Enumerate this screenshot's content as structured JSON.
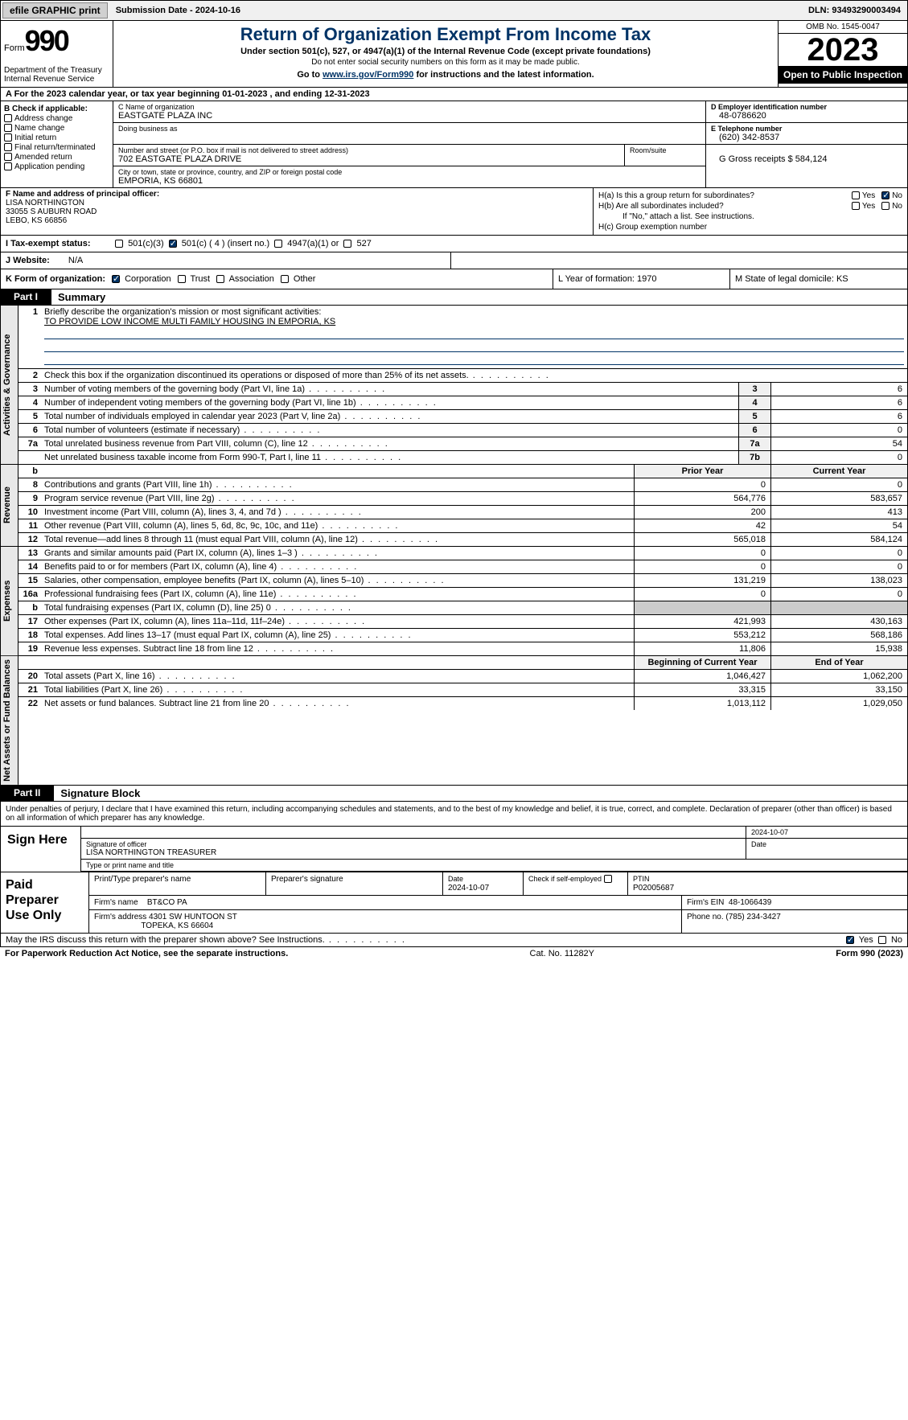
{
  "topbar": {
    "efile": "efile GRAPHIC print",
    "submission_label": "Submission Date - 2024-10-16",
    "dln_label": "DLN: 93493290003494"
  },
  "header": {
    "form_word": "Form",
    "form_number": "990",
    "dept": "Department of the Treasury\nInternal Revenue Service",
    "title": "Return of Organization Exempt From Income Tax",
    "subtitle": "Under section 501(c), 527, or 4947(a)(1) of the Internal Revenue Code (except private foundations)",
    "subnote": "Do not enter social security numbers on this form as it may be made public.",
    "goto_prefix": "Go to ",
    "goto_link": "www.irs.gov/Form990",
    "goto_suffix": " for instructions and the latest information.",
    "omb": "OMB No. 1545-0047",
    "year": "2023",
    "open_pub": "Open to Public Inspection"
  },
  "row_a": "A For the 2023 calendar year, or tax year beginning 01-01-2023    , and ending 12-31-2023",
  "section_b": {
    "label": "B Check if applicable:",
    "items": [
      "Address change",
      "Name change",
      "Initial return",
      "Final return/terminated",
      "Amended return",
      "Application pending"
    ]
  },
  "section_c": {
    "name_label": "C Name of organization",
    "name": "EASTGATE PLAZA INC",
    "dba_label": "Doing business as",
    "addr_label": "Number and street (or P.O. box if mail is not delivered to street address)",
    "addr": "702 EASTGATE PLAZA DRIVE",
    "room_label": "Room/suite",
    "city_label": "City or town, state or province, country, and ZIP or foreign postal code",
    "city": "EMPORIA, KS  66801"
  },
  "section_d": {
    "ein_label": "D Employer identification number",
    "ein": "48-0786620",
    "phone_label": "E Telephone number",
    "phone": "(620) 342-8537",
    "receipts_label": "G Gross receipts $ 584,124"
  },
  "section_f": {
    "label": "F  Name and address of principal officer:",
    "name": "LISA NORTHINGTON",
    "addr1": "33055 S AUBURN ROAD",
    "addr2": "LEBO, KS  66856"
  },
  "section_h": {
    "ha_label": "H(a)  Is this a group return for subordinates?",
    "hb_label": "H(b)  Are all subordinates included?",
    "hb_note": "If \"No,\" attach a list. See instructions.",
    "hc_label": "H(c)  Group exemption number",
    "yes": "Yes",
    "no": "No"
  },
  "row_i": {
    "label": "I  Tax-exempt status:",
    "opt1": "501(c)(3)",
    "opt2": "501(c) ( 4 ) (insert no.)",
    "opt3": "4947(a)(1) or",
    "opt4": "527"
  },
  "row_j": {
    "label": "J  Website:",
    "value": "N/A"
  },
  "row_k": {
    "label": "K Form of organization:",
    "corp": "Corporation",
    "trust": "Trust",
    "assoc": "Association",
    "other": "Other",
    "l_label": "L Year of formation: 1970",
    "m_label": "M State of legal domicile: KS"
  },
  "part1": {
    "num": "Part I",
    "title": "Summary"
  },
  "mission": {
    "q1_label": "Briefly describe the organization's mission or most significant activities:",
    "q1_text": "TO PROVIDE LOW INCOME MULTI FAMILY HOUSING IN EMPORIA, KS"
  },
  "governance_rows": [
    {
      "n": "2",
      "text": "Check this box      if the organization discontinued its operations or disposed of more than 25% of its net assets.",
      "box": "",
      "val": ""
    },
    {
      "n": "3",
      "text": "Number of voting members of the governing body (Part VI, line 1a)",
      "box": "3",
      "val": "6"
    },
    {
      "n": "4",
      "text": "Number of independent voting members of the governing body (Part VI, line 1b)",
      "box": "4",
      "val": "6"
    },
    {
      "n": "5",
      "text": "Total number of individuals employed in calendar year 2023 (Part V, line 2a)",
      "box": "5",
      "val": "6"
    },
    {
      "n": "6",
      "text": "Total number of volunteers (estimate if necessary)",
      "box": "6",
      "val": "0"
    },
    {
      "n": "7a",
      "text": "Total unrelated business revenue from Part VIII, column (C), line 12",
      "box": "7a",
      "val": "54"
    },
    {
      "n": "",
      "text": "Net unrelated business taxable income from Form 990-T, Part I, line 11",
      "box": "7b",
      "val": "0"
    }
  ],
  "rev_header": {
    "b": "b",
    "prior": "Prior Year",
    "current": "Current Year"
  },
  "revenue_rows": [
    {
      "n": "8",
      "text": "Contributions and grants (Part VIII, line 1h)",
      "prior": "0",
      "cur": "0"
    },
    {
      "n": "9",
      "text": "Program service revenue (Part VIII, line 2g)",
      "prior": "564,776",
      "cur": "583,657"
    },
    {
      "n": "10",
      "text": "Investment income (Part VIII, column (A), lines 3, 4, and 7d )",
      "prior": "200",
      "cur": "413"
    },
    {
      "n": "11",
      "text": "Other revenue (Part VIII, column (A), lines 5, 6d, 8c, 9c, 10c, and 11e)",
      "prior": "42",
      "cur": "54"
    },
    {
      "n": "12",
      "text": "Total revenue—add lines 8 through 11 (must equal Part VIII, column (A), line 12)",
      "prior": "565,018",
      "cur": "584,124"
    }
  ],
  "expense_rows": [
    {
      "n": "13",
      "text": "Grants and similar amounts paid (Part IX, column (A), lines 1–3 )",
      "prior": "0",
      "cur": "0"
    },
    {
      "n": "14",
      "text": "Benefits paid to or for members (Part IX, column (A), line 4)",
      "prior": "0",
      "cur": "0"
    },
    {
      "n": "15",
      "text": "Salaries, other compensation, employee benefits (Part IX, column (A), lines 5–10)",
      "prior": "131,219",
      "cur": "138,023"
    },
    {
      "n": "16a",
      "text": "Professional fundraising fees (Part IX, column (A), line 11e)",
      "prior": "0",
      "cur": "0"
    },
    {
      "n": "b",
      "text": "Total fundraising expenses (Part IX, column (D), line 25) 0",
      "prior": "",
      "cur": "",
      "shaded": true
    },
    {
      "n": "17",
      "text": "Other expenses (Part IX, column (A), lines 11a–11d, 11f–24e)",
      "prior": "421,993",
      "cur": "430,163"
    },
    {
      "n": "18",
      "text": "Total expenses. Add lines 13–17 (must equal Part IX, column (A), line 25)",
      "prior": "553,212",
      "cur": "568,186"
    },
    {
      "n": "19",
      "text": "Revenue less expenses. Subtract line 18 from line 12",
      "prior": "11,806",
      "cur": "15,938"
    }
  ],
  "na_header": {
    "begin": "Beginning of Current Year",
    "end": "End of Year"
  },
  "netassets_rows": [
    {
      "n": "20",
      "text": "Total assets (Part X, line 16)",
      "prior": "1,046,427",
      "cur": "1,062,200"
    },
    {
      "n": "21",
      "text": "Total liabilities (Part X, line 26)",
      "prior": "33,315",
      "cur": "33,150"
    },
    {
      "n": "22",
      "text": "Net assets or fund balances. Subtract line 21 from line 20",
      "prior": "1,013,112",
      "cur": "1,029,050"
    }
  ],
  "vtabs": {
    "gov": "Activities & Governance",
    "rev": "Revenue",
    "exp": "Expenses",
    "na": "Net Assets or Fund Balances"
  },
  "part2": {
    "num": "Part II",
    "title": "Signature Block"
  },
  "sig": {
    "disclaimer": "Under penalties of perjury, I declare that I have examined this return, including accompanying schedules and statements, and to the best of my knowledge and belief, it is true, correct, and complete. Declaration of preparer (other than officer) is based on all information of which preparer has any knowledge.",
    "sign_here": "Sign Here",
    "date": "2024-10-07",
    "sig_label": "Signature of officer",
    "officer": "LISA NORTHINGTON  TREASURER",
    "type_label": "Type or print name and title",
    "date_label": "Date"
  },
  "preparer": {
    "label": "Paid Preparer Use Only",
    "col1": "Print/Type preparer's name",
    "col2": "Preparer's signature",
    "col3_label": "Date",
    "col3": "2024-10-07",
    "col4_label": "Check        if self-employed",
    "col5_label": "PTIN",
    "col5": "P02005687",
    "firm_name_label": "Firm's name",
    "firm_name": "BT&CO PA",
    "firm_ein_label": "Firm's EIN",
    "firm_ein": "48-1066439",
    "firm_addr_label": "Firm's address",
    "firm_addr1": "4301 SW HUNTOON ST",
    "firm_addr2": "TOPEKA, KS  66604",
    "phone_label": "Phone no.",
    "phone": "(785) 234-3427"
  },
  "discuss": {
    "text": "May the IRS discuss this return with the preparer shown above? See Instructions.",
    "yes": "Yes",
    "no": "No"
  },
  "footer": {
    "pra": "For Paperwork Reduction Act Notice, see the separate instructions.",
    "cat": "Cat. No. 11282Y",
    "form": "Form 990 (2023)"
  }
}
